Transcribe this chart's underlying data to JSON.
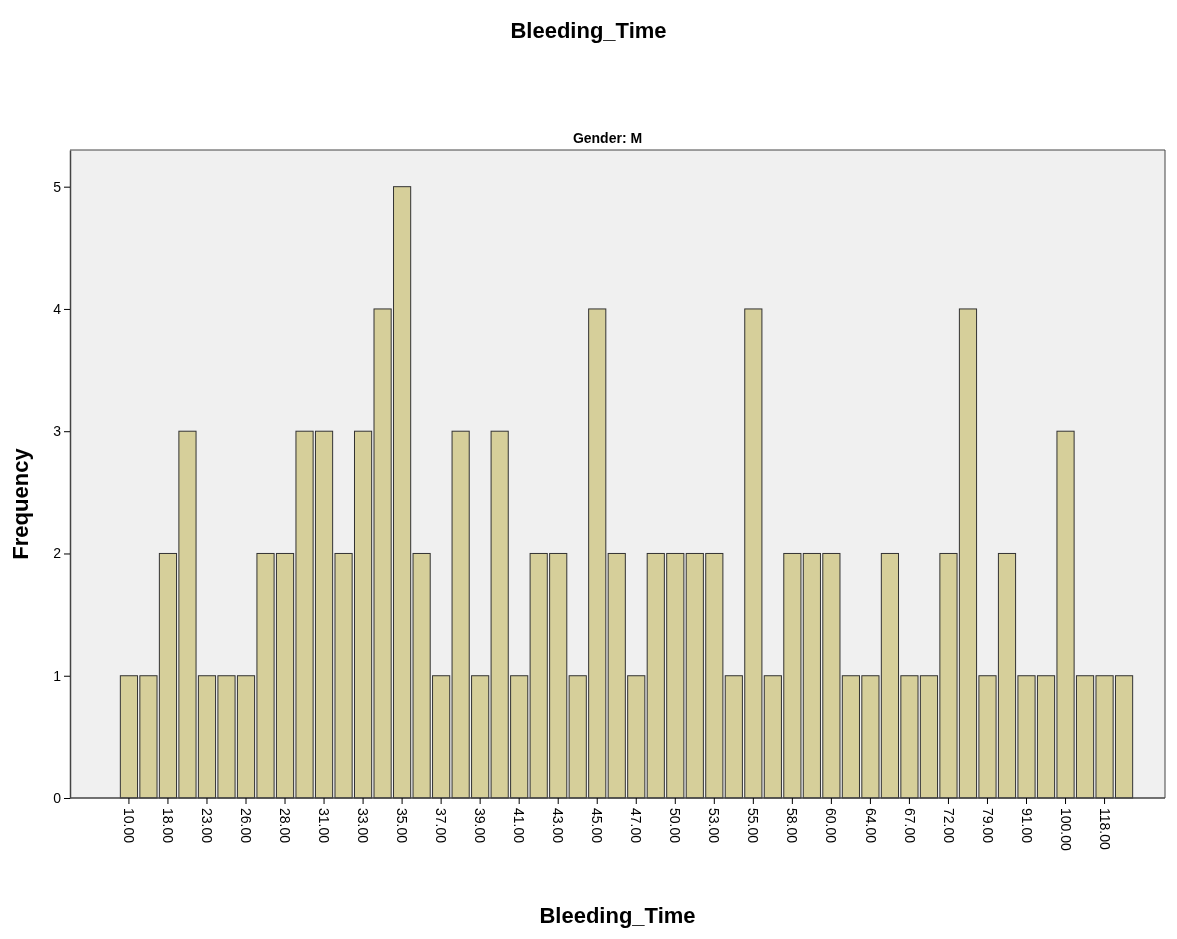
{
  "chart_data": {
    "type": "bar",
    "title": "Bleeding_Time",
    "subtitle": "Gender: M",
    "xlabel": "Bleeding_Time",
    "ylabel": "Frequency",
    "categories": [
      "10.00",
      null,
      "18.00",
      null,
      "23.00",
      null,
      "26.00",
      null,
      "28.00",
      null,
      "31.00",
      null,
      "33.00",
      null,
      "35.00",
      null,
      "37.00",
      null,
      "39.00",
      null,
      "41.00",
      null,
      "43.00",
      null,
      "45.00",
      null,
      "47.00",
      null,
      "50.00",
      null,
      "53.00",
      null,
      "55.00",
      null,
      "58.00",
      null,
      "60.00",
      null,
      "64.00",
      null,
      "67.00",
      null,
      "72.00",
      null,
      "79.00",
      null,
      "91.00",
      null,
      "100.00",
      null,
      "118.00",
      null
    ],
    "values": [
      1,
      1,
      2,
      3,
      1,
      1,
      1,
      2,
      2,
      3,
      3,
      2,
      3,
      4,
      5,
      2,
      1,
      3,
      1,
      3,
      1,
      2,
      2,
      1,
      4,
      2,
      1,
      2,
      2,
      2,
      2,
      1,
      4,
      1,
      2,
      2,
      2,
      1,
      1,
      2,
      1,
      1,
      2,
      4,
      1,
      2,
      1,
      1,
      3,
      1,
      1,
      1
    ],
    "color": "#d6cf9a",
    "ylim": [
      0,
      5.3
    ],
    "yticks": [
      0,
      1,
      2,
      3,
      4,
      5
    ],
    "grid": false
  }
}
